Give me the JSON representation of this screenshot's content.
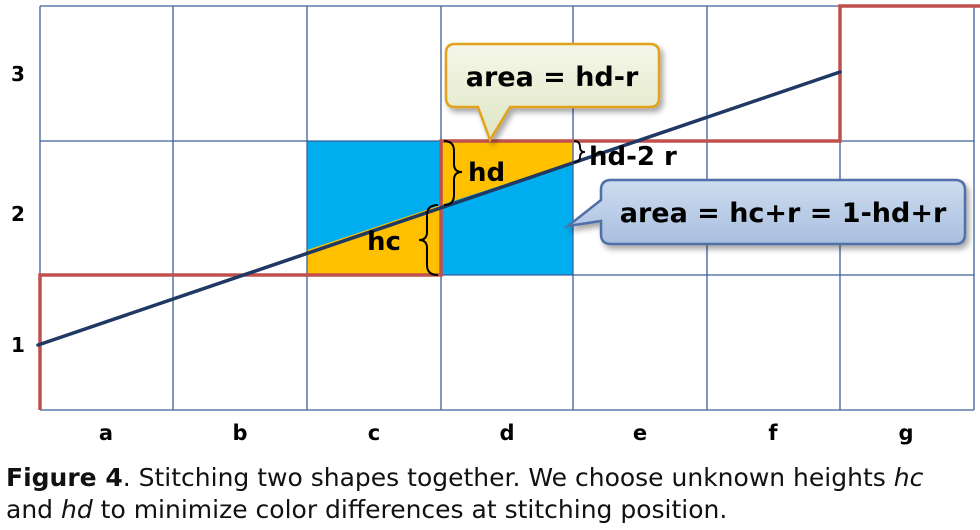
{
  "diagram": {
    "column_labels": [
      "a",
      "b",
      "c",
      "d",
      "e",
      "f",
      "g"
    ],
    "row_labels": [
      "1",
      "2",
      "3"
    ],
    "labels": {
      "hd": "hd",
      "hc": "hc",
      "hd_2r": "hd-2 r"
    },
    "callouts": {
      "top": "area = hd-r",
      "right": "area = hc+r = 1-hd+r"
    },
    "colors": {
      "grid": "#3d5f9a",
      "cyan_fill": "#00aeef",
      "orange_fill": "#ffc000",
      "red_outline": "#c0504d",
      "line": "#1f3864",
      "callout_top_fill": "#ebf0d8",
      "callout_top_stroke": "#e3a21a",
      "callout_right_fill": "#b8cbe4",
      "callout_right_stroke": "#4f6fa8"
    }
  },
  "caption": {
    "label": "Figure 4",
    "text1": ". Stitching two shapes together. We choose unknown heights ",
    "hc": "hc",
    "text2": " and ",
    "hd": "hd",
    "text3": " to minimize  color differences at stitching position."
  }
}
